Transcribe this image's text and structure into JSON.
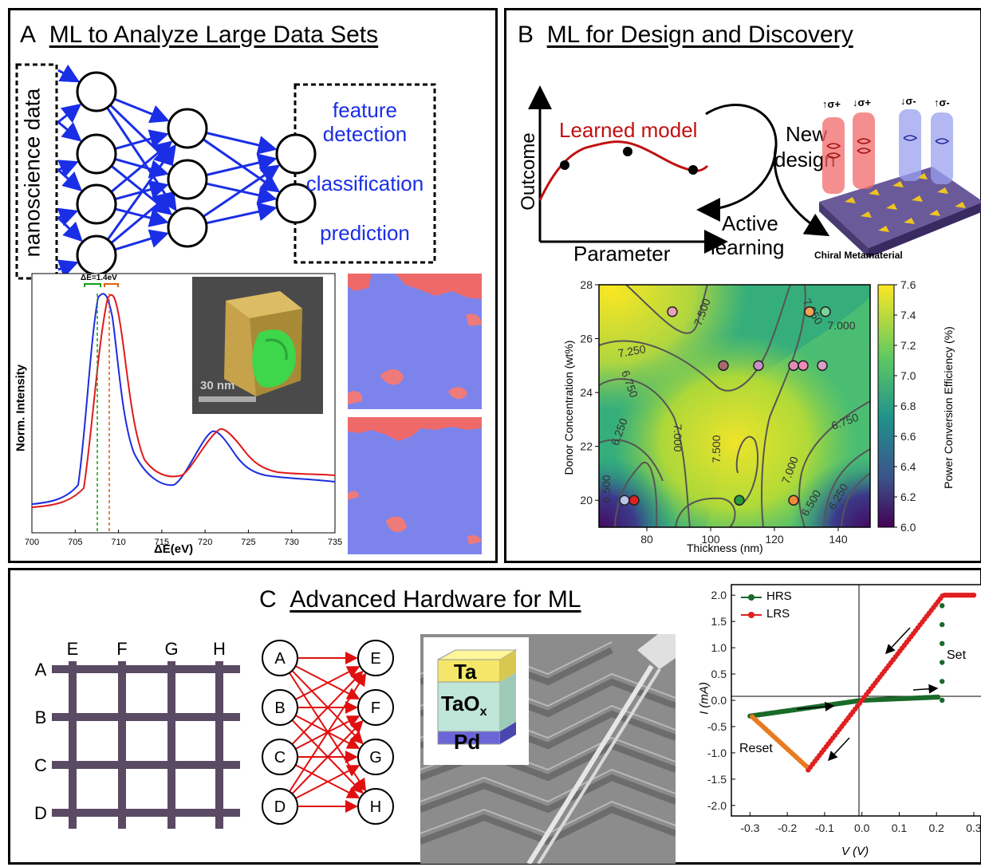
{
  "panelA": {
    "letter": "A",
    "title": "ML to Analyze Large Data Sets",
    "input_label": "nanoscience data",
    "outputs": [
      "feature",
      "detection",
      "classification",
      "prediction"
    ],
    "spectrum": {
      "ylabel": "Norm. Intensity",
      "xlabel": "ΔE(eV)",
      "delta_label": "ΔE=1.4eV",
      "xticks": [
        "700",
        "705",
        "710",
        "715",
        "720",
        "725",
        "730",
        "735"
      ],
      "inset_scale": "30 nm"
    }
  },
  "panelB": {
    "letter": "B",
    "title": "ML for Design and Discovery",
    "model_label": "Learned model",
    "outcome_label": "Outcome",
    "parameter_label": "Parameter",
    "new_design": [
      "New",
      "design"
    ],
    "active_learning": [
      "Active",
      "learning"
    ],
    "meta_label": "Chiral Metamaterial",
    "spins": [
      "σ+",
      "σ+",
      "σ-",
      "σ-"
    ]
  },
  "contour": {
    "xlabel": "Thickness (nm)",
    "ylabel": "Donor Concentration (wt%)",
    "cbar_label": "Power Conversion Efficiency (%)",
    "xticks": [
      "80",
      "100",
      "120",
      "140"
    ],
    "yticks": [
      "20",
      "22",
      "24",
      "26",
      "28"
    ],
    "cbar_ticks": [
      "6.0",
      "6.2",
      "6.4",
      "6.6",
      "6.8",
      "7.0",
      "7.2",
      "7.4",
      "7.6"
    ],
    "contour_labels": [
      "7.500",
      "7.250",
      "7.000",
      "7.250",
      "6.750",
      "7.000",
      "7.500",
      "6.500",
      "7.000",
      "6.500",
      "6.250",
      "6.750",
      "6.250"
    ],
    "points": [
      {
        "x": 88,
        "y": 27,
        "color": "#e9a0b8"
      },
      {
        "x": 131,
        "y": 27,
        "color": "#f2a35a"
      },
      {
        "x": 136,
        "y": 27,
        "color": "#7fd19a"
      },
      {
        "x": 104,
        "y": 25,
        "color": "#a56a6a"
      },
      {
        "x": 115,
        "y": 25,
        "color": "#c890c8"
      },
      {
        "x": 126,
        "y": 25,
        "color": "#e08cb4"
      },
      {
        "x": 129,
        "y": 25,
        "color": "#f08ab8"
      },
      {
        "x": 135,
        "y": 25,
        "color": "#d6a0c8"
      },
      {
        "x": 73,
        "y": 20,
        "color": "#b8c4e8"
      },
      {
        "x": 76,
        "y": 20,
        "color": "#e02020"
      },
      {
        "x": 109,
        "y": 20,
        "color": "#2a9a3a"
      },
      {
        "x": 126,
        "y": 20,
        "color": "#f28a3a"
      }
    ]
  },
  "panelC": {
    "letter": "C",
    "title": "Advanced Hardware for ML",
    "rows": [
      "A",
      "B",
      "C",
      "D"
    ],
    "cols": [
      "E",
      "F",
      "G",
      "H"
    ],
    "layers": {
      "top": "Ta",
      "mid": "TaO",
      "mid_sub": "x",
      "bottom": "Pd"
    }
  },
  "iv_chart": {
    "legend": [
      "HRS",
      "LRS"
    ],
    "xlabel": "V (V)",
    "ylabel": "I (mA)",
    "xticks": [
      "-0.3",
      "-0.2",
      "-0.1",
      "0.0",
      "0.1",
      "0.2",
      "0.3"
    ],
    "yticks": [
      "2.0",
      "1.5",
      "1.0",
      "0.5",
      "0.0",
      "-0.5",
      "-1.0",
      "-1.5",
      "-2.0"
    ],
    "set_label": "Set",
    "reset_label": "Reset"
  },
  "colors": {
    "nn_edge": "#1a2ee6",
    "text_blue": "#1a2ee6",
    "red": "#e01010",
    "crossbar": "#5a4a63"
  }
}
